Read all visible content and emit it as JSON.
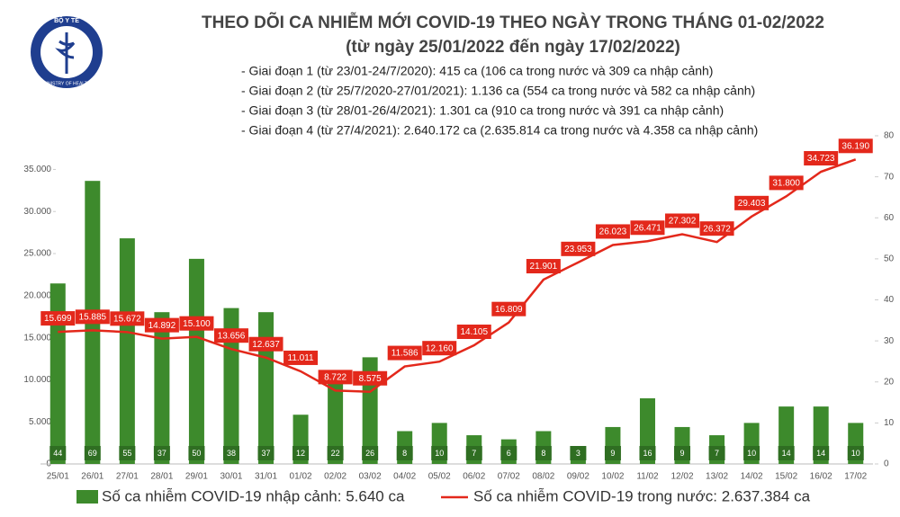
{
  "logo": {
    "top": "BỘ Y TẾ",
    "bottom": "MINISTRY OF HEALTH"
  },
  "chart_data": {
    "type": "combo",
    "title": "THEO DÕI CA NHIỄM MỚI COVID-19 THEO NGÀY TRONG THÁNG 01-02/2022",
    "subtitle": "(từ ngày 25/01/2022 đến ngày 17/02/2022)",
    "notes": [
      "- Giai đoạn 1 (từ 23/01-24/7/2020): 415 ca (106 ca trong nước và 309 ca nhập cảnh)",
      "- Giai đoạn 2 (từ 25/7/2020-27/01/2021): 1.136 ca (554 ca trong nước và 582 ca nhập cảnh)",
      "- Giai đoạn 3 (từ 28/01-26/4/2021): 1.301 ca (910 ca trong nước và 391 ca nhập cảnh)",
      "- Giai đoạn 4 (từ 27/4/2021): 2.640.172 ca (2.635.814 ca trong nước và 4.358 ca nhập cảnh)"
    ],
    "categories": [
      "25/01",
      "26/01",
      "27/01",
      "28/01",
      "29/01",
      "30/01",
      "31/01",
      "01/02",
      "02/02",
      "03/02",
      "04/02",
      "05/02",
      "06/02",
      "07/02",
      "08/02",
      "09/02",
      "10/02",
      "11/02",
      "12/02",
      "13/02",
      "14/02",
      "15/02",
      "16/02",
      "17/02"
    ],
    "series": [
      {
        "name": "Số ca nhiễm COVID-19 nhập cảnh: 5.640 ca",
        "type": "bar",
        "axis": "y2",
        "color": "#3d8a2c",
        "values": [
          44,
          69,
          55,
          37,
          50,
          38,
          37,
          12,
          22,
          26,
          8,
          10,
          7,
          6,
          8,
          3,
          9,
          16,
          9,
          7,
          10,
          14,
          14,
          10
        ]
      },
      {
        "name": "Số ca nhiễm COVID-19 trong nước: 2.637.384 ca",
        "type": "line",
        "color": "#e3281b",
        "values": [
          15699,
          15885,
          15672,
          14892,
          15100,
          13656,
          12637,
          11011,
          8722,
          8575,
          11586,
          12160,
          14105,
          16809,
          21901,
          23953,
          26023,
          26471,
          27302,
          26372,
          29403,
          31800,
          34723,
          36190
        ],
        "value_labels": [
          "15.699",
          "15.885",
          "15.672",
          "14.892",
          "15.100",
          "13.656",
          "12.637",
          "11.011",
          "8.722",
          "8.575",
          "11.586",
          "12.160",
          "14.105",
          "16.809",
          "21.901",
          "23.953",
          "26.023",
          "26.471",
          "27.302",
          "26.372",
          "29.403",
          "31.800",
          "34.723",
          "36.190"
        ]
      }
    ],
    "ylim": [
      0,
      39000
    ],
    "yticks": [
      0,
      {
        "value": 5000,
        "label": "5.000"
      },
      {
        "value": 10000,
        "label": "10.000"
      },
      {
        "value": 15000,
        "label": "15.000"
      },
      {
        "value": 20000,
        "label": "20.000"
      },
      {
        "value": 25000,
        "label": "25.000"
      },
      {
        "value": 30000,
        "label": "30.000"
      },
      {
        "value": 35000,
        "label": "35.000"
      }
    ],
    "y2lim": [
      0,
      80
    ],
    "y2ticks": [
      0,
      10,
      20,
      30,
      40,
      50,
      60,
      70,
      80
    ]
  }
}
